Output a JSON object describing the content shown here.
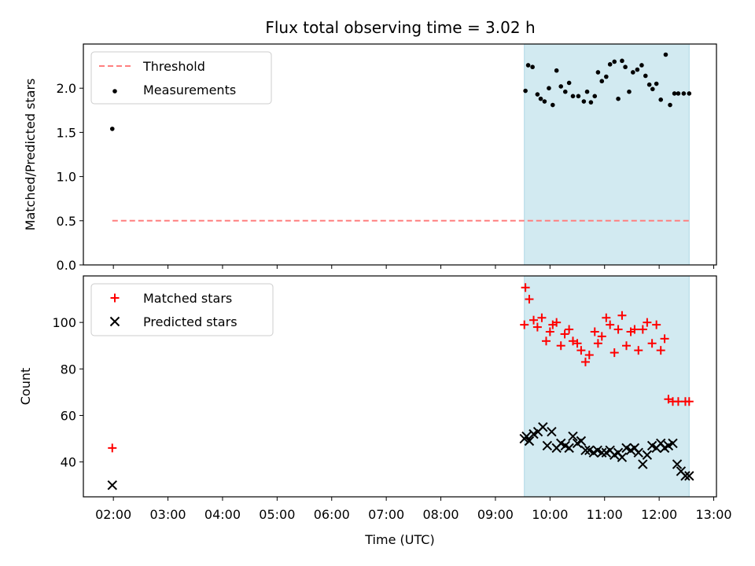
{
  "title": "Flux total observing time = 3.02 h",
  "colors": {
    "threshold": "#ff7f7f",
    "measurement": "#000000",
    "matched": "#ff0000",
    "predicted": "#000000",
    "span": "#add8e6"
  },
  "chart_data": [
    {
      "type": "scatter",
      "ylabel": "Matched/Predicted stars",
      "xlim": [
        1.45,
        13.05
      ],
      "ylim": [
        0,
        2.5
      ],
      "yticks": [
        0.0,
        0.5,
        1.0,
        1.5,
        2.0
      ],
      "ytick_labels": [
        "0.0",
        "0.5",
        "1.0",
        "1.5",
        "2.0"
      ],
      "shaded_span": [
        9.53,
        12.55
      ],
      "legend": {
        "placement": "upper-left",
        "entries": [
          "Threshold",
          "Measurements"
        ]
      },
      "series": [
        {
          "name": "Threshold",
          "style": "dashed-line",
          "x": [
            1.98,
            12.55
          ],
          "y": [
            0.5,
            0.5
          ]
        },
        {
          "name": "Measurements",
          "style": "dot",
          "x": [
            1.98,
            9.55,
            9.6,
            9.68,
            9.77,
            9.83,
            9.9,
            9.98,
            10.05,
            10.12,
            10.2,
            10.28,
            10.35,
            10.42,
            10.52,
            10.62,
            10.68,
            10.75,
            10.82,
            10.88,
            10.95,
            11.03,
            11.1,
            11.18,
            11.25,
            11.32,
            11.38,
            11.45,
            11.52,
            11.6,
            11.68,
            11.75,
            11.82,
            11.88,
            11.95,
            12.03,
            12.12,
            12.2,
            12.28,
            12.35,
            12.45,
            12.55
          ],
          "y": [
            1.54,
            1.97,
            2.26,
            2.24,
            1.93,
            1.88,
            1.85,
            2.0,
            1.81,
            2.2,
            2.02,
            1.96,
            2.06,
            1.91,
            1.91,
            1.85,
            1.96,
            1.84,
            1.91,
            2.18,
            2.08,
            2.13,
            2.27,
            2.3,
            1.88,
            2.31,
            2.24,
            1.96,
            2.18,
            2.21,
            2.26,
            2.14,
            2.04,
            1.99,
            2.05,
            1.87,
            2.38,
            1.81,
            1.94,
            1.94,
            1.94,
            1.94
          ]
        }
      ]
    },
    {
      "type": "scatter",
      "xlabel": "Time (UTC)",
      "ylabel": "Count",
      "xlim": [
        1.45,
        13.05
      ],
      "ylim": [
        25,
        120
      ],
      "yticks": [
        40,
        60,
        80,
        100
      ],
      "ytick_labels": [
        "40",
        "60",
        "80",
        "100"
      ],
      "xticks": [
        2,
        3,
        4,
        5,
        6,
        7,
        8,
        9,
        10,
        11,
        12,
        13
      ],
      "xtick_labels": [
        "02:00",
        "03:00",
        "04:00",
        "05:00",
        "06:00",
        "07:00",
        "08:00",
        "09:00",
        "10:00",
        "11:00",
        "12:00",
        "13:00"
      ],
      "shaded_span": [
        9.53,
        12.55
      ],
      "legend": {
        "placement": "upper-left",
        "entries": [
          "Matched stars",
          "Predicted stars"
        ]
      },
      "series": [
        {
          "name": "Matched stars",
          "marker": "+",
          "x": [
            1.98,
            9.53,
            9.55,
            9.62,
            9.7,
            9.77,
            9.85,
            9.93,
            10.0,
            10.05,
            10.12,
            10.2,
            10.27,
            10.35,
            10.42,
            10.5,
            10.57,
            10.65,
            10.72,
            10.82,
            10.88,
            10.95,
            11.03,
            11.1,
            11.18,
            11.25,
            11.32,
            11.4,
            11.48,
            11.55,
            11.62,
            11.7,
            11.78,
            11.87,
            11.95,
            12.03,
            12.1,
            12.17,
            12.25,
            12.35,
            12.48,
            12.55
          ],
          "y": [
            46,
            99,
            115,
            110,
            101,
            98,
            102,
            92,
            96,
            99,
            100,
            90,
            95,
            97,
            92,
            91,
            88,
            83,
            86,
            96,
            91,
            94,
            102,
            99,
            87,
            97,
            103,
            90,
            96,
            97,
            88,
            97,
            100,
            91,
            99,
            88,
            93,
            67,
            66,
            66,
            66,
            66
          ]
        },
        {
          "name": "Predicted stars",
          "marker": "x",
          "x": [
            1.98,
            9.53,
            9.57,
            9.62,
            9.7,
            9.78,
            9.87,
            9.95,
            10.03,
            10.12,
            10.2,
            10.28,
            10.35,
            10.42,
            10.5,
            10.57,
            10.65,
            10.72,
            10.8,
            10.87,
            10.95,
            11.03,
            11.1,
            11.18,
            11.25,
            11.32,
            11.4,
            11.48,
            11.55,
            11.62,
            11.7,
            11.78,
            11.87,
            11.95,
            12.03,
            12.1,
            12.17,
            12.25,
            12.33,
            12.4,
            12.48,
            12.55
          ],
          "y": [
            30,
            50,
            51,
            49,
            52,
            53,
            55,
            47,
            53,
            46,
            48,
            47,
            46,
            51,
            48,
            49,
            45,
            45,
            44,
            45,
            44,
            44,
            45,
            43,
            44,
            42,
            46,
            45,
            46,
            44,
            39,
            43,
            47,
            46,
            48,
            46,
            47,
            48,
            39,
            36,
            34,
            34
          ]
        }
      ]
    }
  ]
}
